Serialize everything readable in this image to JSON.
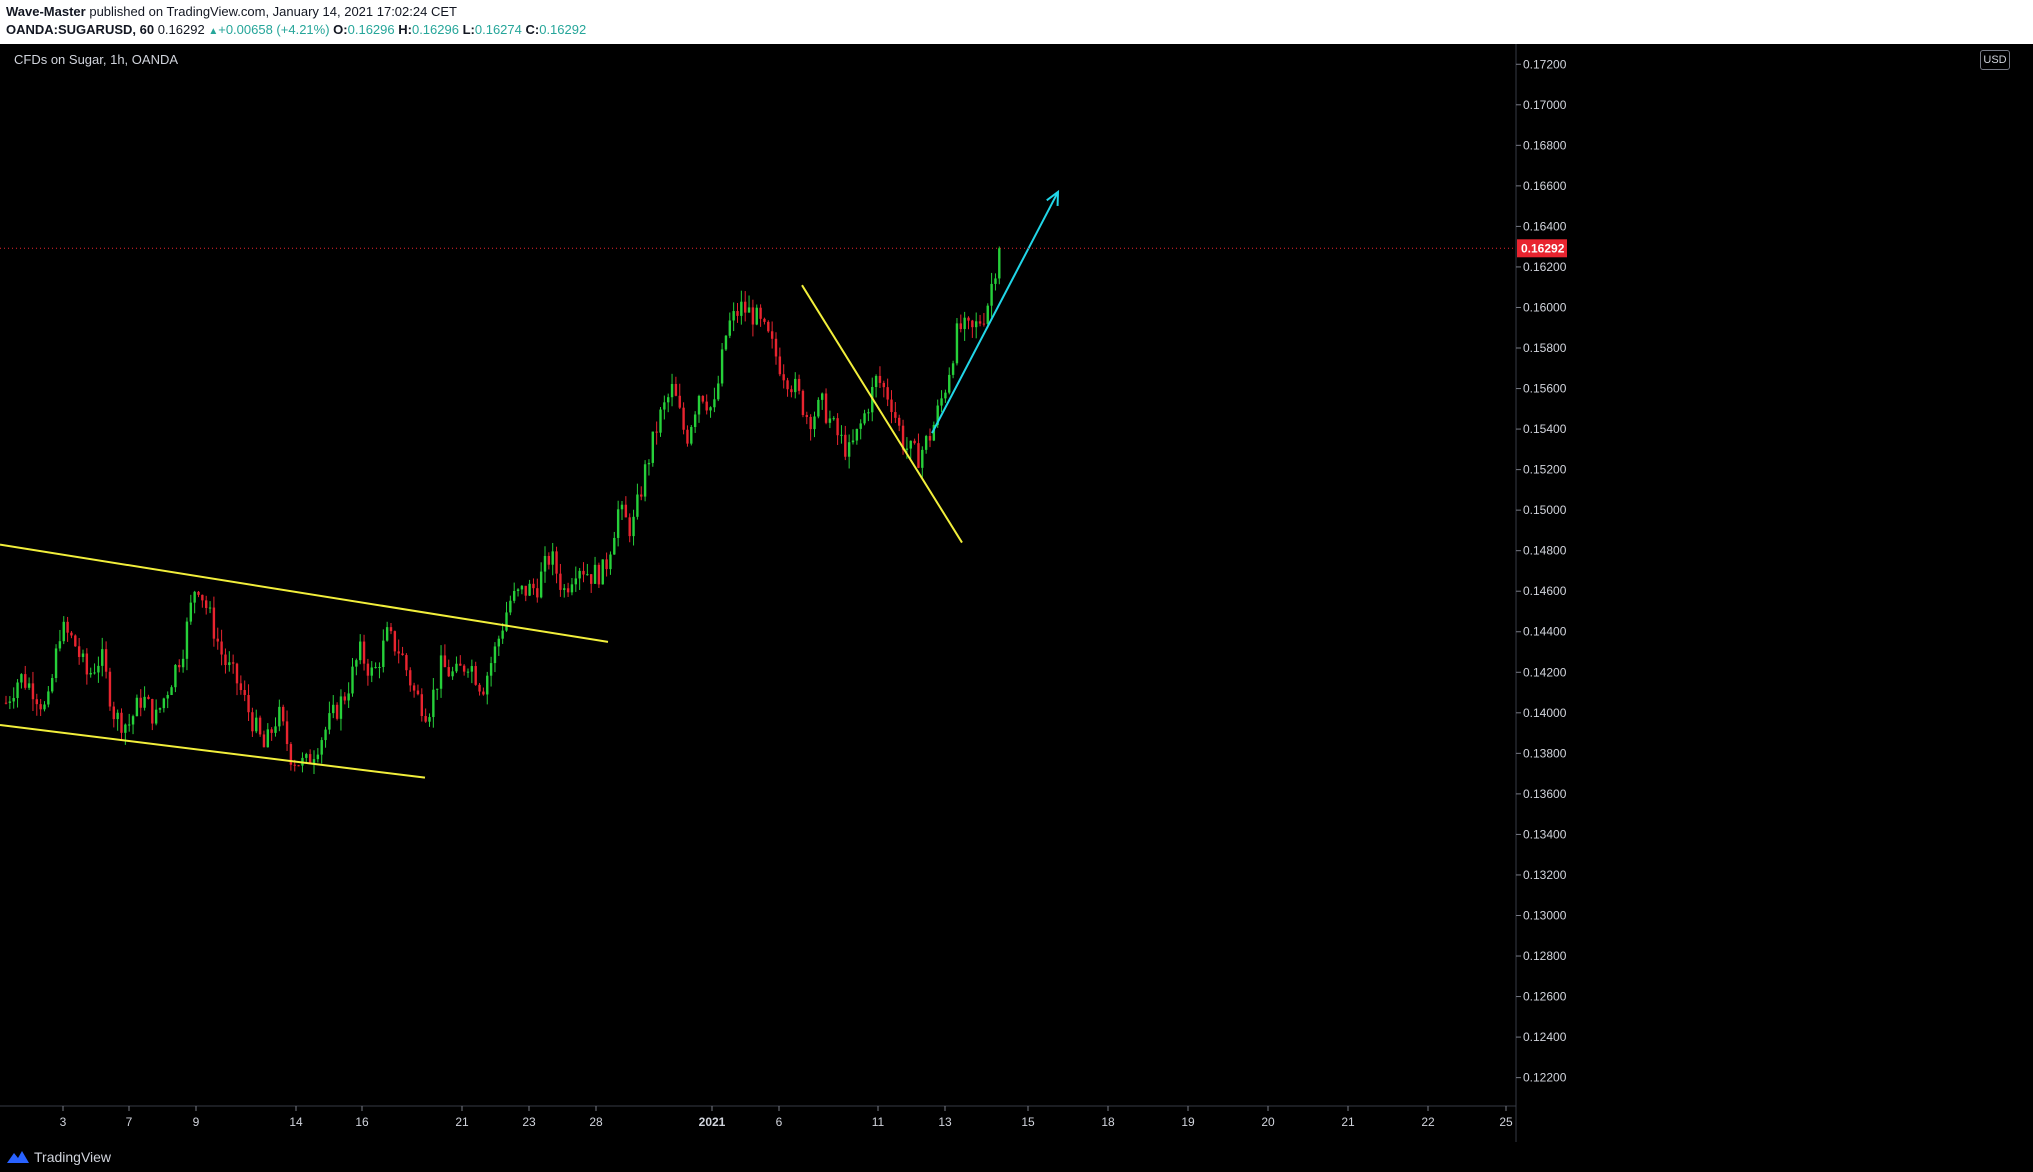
{
  "header": {
    "author": "Wave-Master",
    "published": "published on TradingView.com, January 14, 2021 17:02:24 CET",
    "symbol": "OANDA:SUGARUSD, 60",
    "last": "0.16292",
    "change": "+0.00658 (+4.21%)",
    "o_label": "O:",
    "o_value": "0.16296",
    "h_label": "H:",
    "h_value": "0.16296",
    "l_label": "L:",
    "l_value": "0.16274",
    "c_label": "C:",
    "c_value": "0.16292"
  },
  "chart_title": "CFDs on Sugar, 1h, OANDA",
  "currency": "USD",
  "footer": {
    "brand": "TradingView"
  },
  "colors": {
    "background": "#000000",
    "up": "#26d03a",
    "down": "#e8242f",
    "trendline": "#f2ef3b",
    "arrow": "#21d6e8",
    "last_price": "#e8242f"
  },
  "chart_data": {
    "type": "candlestick",
    "title": "CFDs on Sugar, 1h, OANDA",
    "ylim": [
      0.1206,
      0.173
    ],
    "y_ticks": [
      "0.17200",
      "0.17000",
      "0.16800",
      "0.16600",
      "0.16400",
      "0.16200",
      "0.16000",
      "0.15800",
      "0.15600",
      "0.15400",
      "0.15200",
      "0.15000",
      "0.14800",
      "0.14600",
      "0.14400",
      "0.14200",
      "0.14000",
      "0.13800",
      "0.13600",
      "0.13400",
      "0.13200",
      "0.13000",
      "0.12800",
      "0.12600",
      "0.12400",
      "0.12200"
    ],
    "x_ticks": [
      {
        "label": "3",
        "bold": false
      },
      {
        "label": "7",
        "bold": false
      },
      {
        "label": "9",
        "bold": false
      },
      {
        "label": "14",
        "bold": false
      },
      {
        "label": "16",
        "bold": false
      },
      {
        "label": "21",
        "bold": false
      },
      {
        "label": "23",
        "bold": false
      },
      {
        "label": "28",
        "bold": false
      },
      {
        "label": "2021",
        "bold": true
      },
      {
        "label": "6",
        "bold": false
      },
      {
        "label": "11",
        "bold": false
      },
      {
        "label": "13",
        "bold": false
      },
      {
        "label": "15",
        "bold": false
      },
      {
        "label": "18",
        "bold": false
      },
      {
        "label": "19",
        "bold": false
      },
      {
        "label": "20",
        "bold": false
      },
      {
        "label": "21",
        "bold": false
      },
      {
        "label": "22",
        "bold": false
      },
      {
        "label": "25",
        "bold": false
      }
    ],
    "last_price": "0.16292",
    "price_path": [
      0.1405,
      0.1418,
      0.1412,
      0.14,
      0.1442,
      0.1435,
      0.1418,
      0.1428,
      0.1398,
      0.1394,
      0.1408,
      0.1397,
      0.1414,
      0.1432,
      0.1466,
      0.1447,
      0.1426,
      0.1415,
      0.1398,
      0.1382,
      0.14,
      0.1378,
      0.1374,
      0.1386,
      0.1398,
      0.141,
      0.143,
      0.1418,
      0.1438,
      0.143,
      0.141,
      0.14,
      0.1423,
      0.1418,
      0.1426,
      0.1412,
      0.1432,
      0.1455,
      0.146,
      0.1462,
      0.1478,
      0.146,
      0.1474,
      0.1468,
      0.147,
      0.15,
      0.149,
      0.152,
      0.1545,
      0.156,
      0.1535,
      0.156,
      0.1548,
      0.159,
      0.16,
      0.1596,
      0.1585,
      0.157,
      0.156,
      0.1545,
      0.1552,
      0.1538,
      0.1528,
      0.1545,
      0.1565,
      0.1555,
      0.1532,
      0.1526,
      0.1538,
      0.156,
      0.159,
      0.1588,
      0.1598,
      0.1629
    ],
    "trendlines": [
      {
        "x1": 0,
        "y1": 0.1483,
        "x2": 608,
        "y2": 0.1435
      },
      {
        "x1": 0,
        "y1": 0.1394,
        "x2": 425,
        "y2": 0.1368
      },
      {
        "x1": 802,
        "y1": 0.1611,
        "x2": 962,
        "y2": 0.1484
      }
    ],
    "arrow": {
      "x1": 932,
      "y1": 0.1538,
      "x2": 1058,
      "y2": 0.1657
    }
  }
}
